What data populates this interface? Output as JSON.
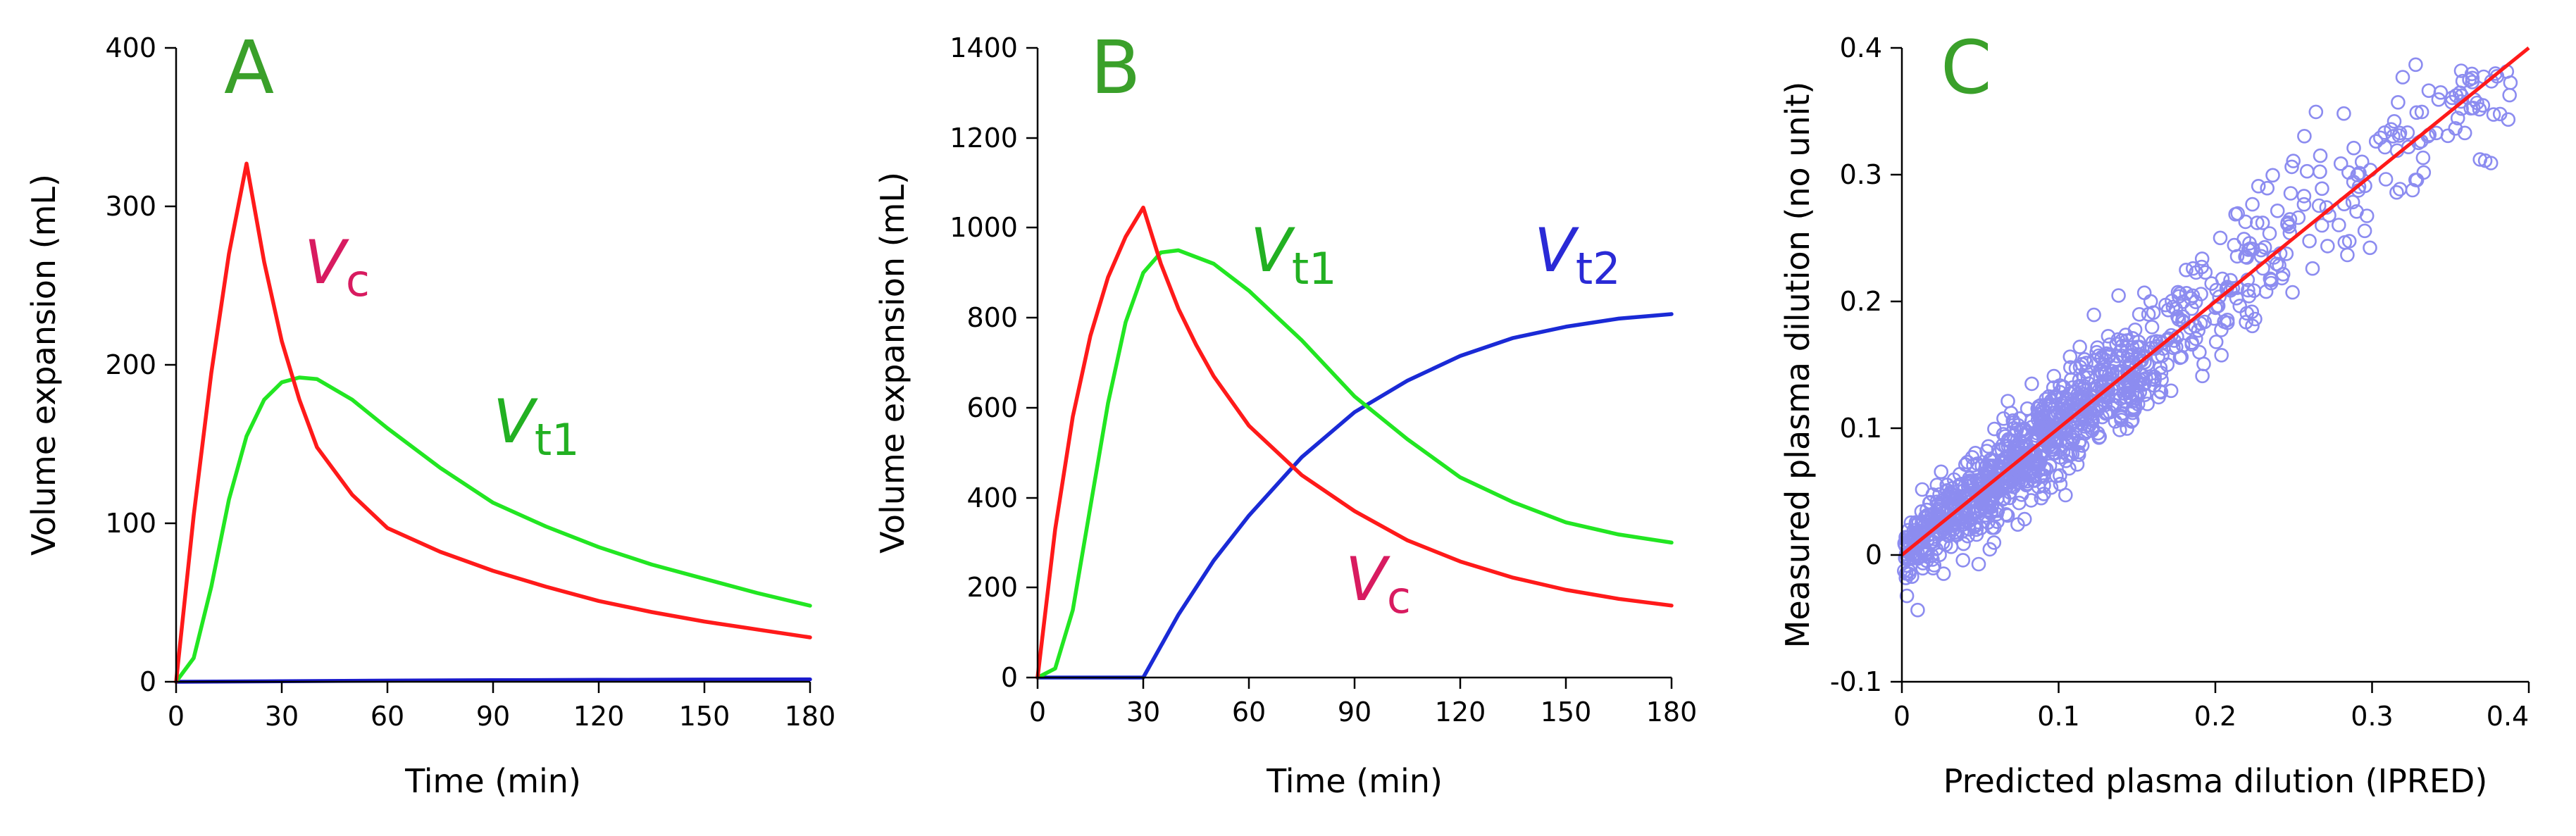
{
  "chart_data": [
    {
      "type": "line",
      "panel": "A",
      "panel_color": "#3aa02a",
      "xlabel": "Time (min)",
      "ylabel": "Volume expansion (mL)",
      "xlim": [
        0,
        180
      ],
      "ylim": [
        0,
        400
      ],
      "xticks": [
        "0",
        "30",
        "60",
        "90",
        "120",
        "150",
        "180"
      ],
      "yticks": [
        "0",
        "100",
        "200",
        "300",
        "400"
      ],
      "series": [
        {
          "name": "Vc",
          "label_main": "V",
          "label_sub": "c",
          "color": "#ff1a1a",
          "x": [
            0,
            5,
            10,
            15,
            20,
            25,
            30,
            35,
            40,
            50,
            60,
            75,
            90,
            105,
            120,
            135,
            150,
            165,
            180
          ],
          "y": [
            0,
            105,
            195,
            270,
            327,
            265,
            215,
            178,
            148,
            118,
            97,
            82,
            70,
            60,
            51,
            44,
            38,
            33,
            28
          ]
        },
        {
          "name": "Vt1",
          "label_main": "V",
          "label_sub": "t1",
          "color": "#22e622",
          "x": [
            0,
            5,
            10,
            15,
            20,
            25,
            30,
            35,
            40,
            50,
            60,
            75,
            90,
            105,
            120,
            135,
            150,
            165,
            180
          ],
          "y": [
            0,
            15,
            60,
            115,
            155,
            178,
            189,
            192,
            191,
            178,
            160,
            135,
            113,
            98,
            85,
            74,
            65,
            56,
            48
          ]
        },
        {
          "name": "Vt2",
          "label_main": "",
          "label_sub": "",
          "color": "#1a1acc",
          "x": [
            0,
            30,
            60,
            90,
            120,
            150,
            180
          ],
          "y": [
            0,
            0.3,
            0.7,
            1.0,
            1.2,
            1.4,
            1.5
          ]
        }
      ]
    },
    {
      "type": "line",
      "panel": "B",
      "panel_color": "#3aa02a",
      "xlabel": "Time (min)",
      "ylabel": "Volume expansion (mL)",
      "xlim": [
        0,
        180
      ],
      "ylim": [
        0,
        1400
      ],
      "xticks": [
        "0",
        "30",
        "60",
        "90",
        "120",
        "150",
        "180"
      ],
      "yticks": [
        "0",
        "200",
        "400",
        "600",
        "800",
        "1000",
        "1200",
        "1400"
      ],
      "series": [
        {
          "name": "Vc",
          "label_main": "V",
          "label_sub": "c",
          "color": "#ff1a1a",
          "x": [
            0,
            5,
            10,
            15,
            20,
            25,
            30,
            35,
            40,
            45,
            50,
            60,
            75,
            90,
            105,
            120,
            135,
            150,
            165,
            180
          ],
          "y": [
            0,
            330,
            580,
            760,
            890,
            980,
            1045,
            920,
            820,
            740,
            670,
            560,
            450,
            370,
            305,
            258,
            222,
            195,
            175,
            160
          ]
        },
        {
          "name": "Vt1",
          "label_main": "V",
          "label_sub": "t1",
          "color": "#22e622",
          "x": [
            0,
            5,
            10,
            15,
            20,
            25,
            30,
            35,
            40,
            50,
            60,
            75,
            90,
            105,
            120,
            135,
            150,
            165,
            180
          ],
          "y": [
            0,
            20,
            150,
            380,
            610,
            790,
            900,
            945,
            950,
            920,
            860,
            750,
            625,
            530,
            445,
            390,
            345,
            318,
            300
          ]
        },
        {
          "name": "Vt2",
          "label_main": "V",
          "label_sub": "t2",
          "color": "#1a2ad6",
          "x": [
            0,
            30,
            40,
            50,
            60,
            75,
            90,
            105,
            120,
            135,
            150,
            165,
            180
          ],
          "y": [
            0,
            0,
            140,
            260,
            360,
            490,
            590,
            660,
            715,
            755,
            780,
            798,
            808
          ]
        }
      ]
    },
    {
      "type": "scatter",
      "panel": "C",
      "panel_color": "#3aa02a",
      "xlabel": "Predicted plasma dilution (IPRED)",
      "ylabel": "Measured plasma dilution (no unit)",
      "xlim": [
        0,
        0.4
      ],
      "ylim": [
        -0.1,
        0.4
      ],
      "xticks": [
        "0",
        "0.1",
        "0.2",
        "0.3",
        "0.4"
      ],
      "yticks": [
        "-0.1",
        "0",
        "0.1",
        "0.2",
        "0.3",
        "0.4"
      ],
      "point_color": "#8c8cf0",
      "line_color": "#ff1a1a",
      "identity_line": [
        [
          0,
          0
        ],
        [
          0.4,
          0.4
        ]
      ],
      "n_points": 1100
    }
  ]
}
